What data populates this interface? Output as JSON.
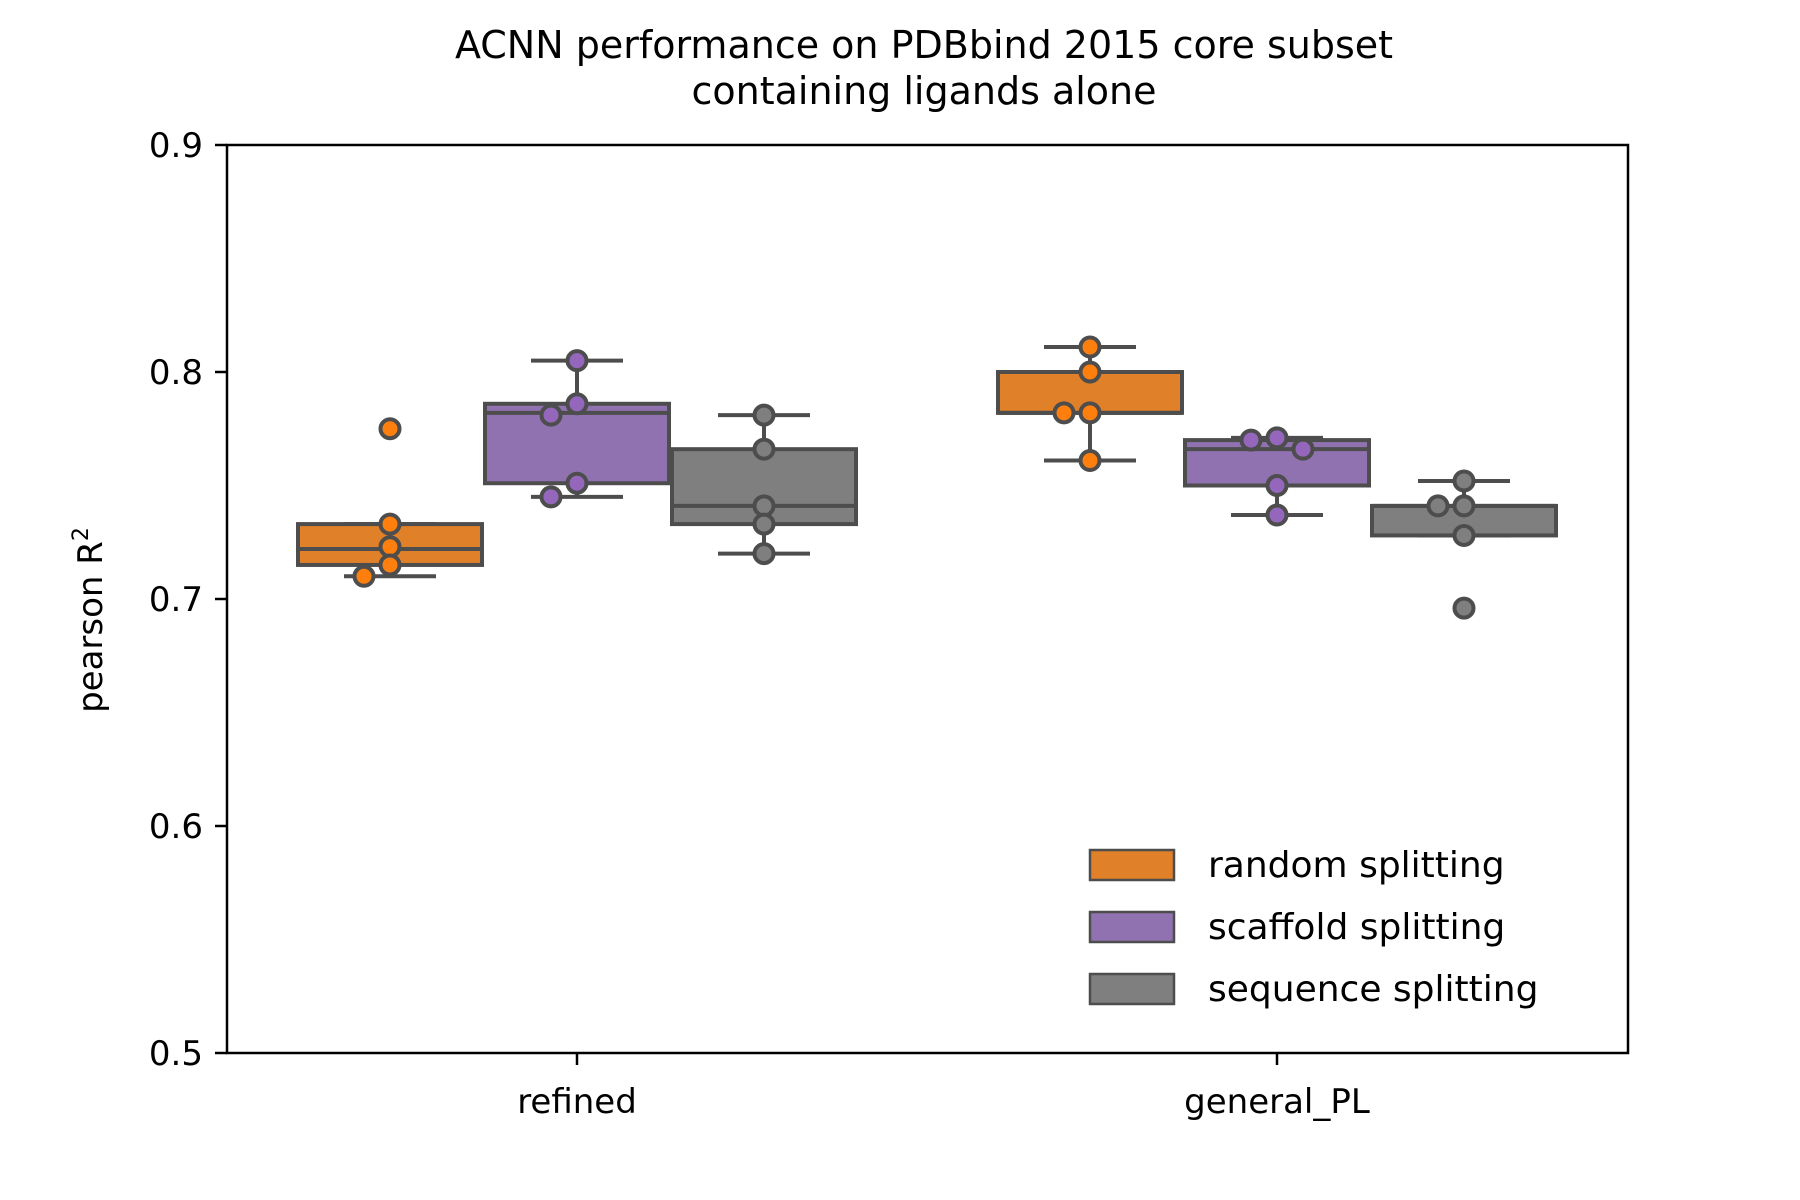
{
  "chart_data": {
    "type": "box",
    "title_line1": "ACNN performance on PDBbind 2015 core subset",
    "title_line2": "containing ligands alone",
    "xlabel": "",
    "ylabel": "pearson R",
    "ylabel_superscript": "2",
    "ylim": [
      0.5,
      0.9
    ],
    "yticks": [
      0.5,
      0.6,
      0.7,
      0.8,
      0.9
    ],
    "ytick_labels": [
      "0.5",
      "0.6",
      "0.7",
      "0.8",
      "0.9"
    ],
    "categories": [
      "refined",
      "general_PL"
    ],
    "grid": false,
    "legend_position": "lower-right",
    "series": [
      {
        "name": "random splitting",
        "color": "#e08028",
        "point_color": "#ff7f0e",
        "boxes": [
          {
            "whisker_low": 0.71,
            "q1": 0.715,
            "median": 0.722,
            "q3": 0.733,
            "whisker_high": 0.733,
            "outliers": [
              0.775
            ],
            "points": [
              0.775,
              0.733,
              0.723,
              0.715,
              0.71
            ]
          },
          {
            "whisker_low": 0.761,
            "q1": 0.782,
            "median": 0.782,
            "q3": 0.8,
            "whisker_high": 0.811,
            "outliers": [],
            "points": [
              0.811,
              0.8,
              0.782,
              0.782,
              0.761
            ]
          }
        ]
      },
      {
        "name": "scaffold splitting",
        "color": "#9172b0",
        "point_color": "#9467bd",
        "boxes": [
          {
            "whisker_low": 0.745,
            "q1": 0.751,
            "median": 0.782,
            "q3": 0.786,
            "whisker_high": 0.805,
            "outliers": [],
            "points": [
              0.805,
              0.786,
              0.781,
              0.751,
              0.745
            ]
          },
          {
            "whisker_low": 0.737,
            "q1": 0.75,
            "median": 0.766,
            "q3": 0.77,
            "whisker_high": 0.771,
            "outliers": [],
            "points": [
              0.771,
              0.77,
              0.766,
              0.75,
              0.737
            ]
          }
        ]
      },
      {
        "name": "sequence splitting",
        "color": "#7f7f7f",
        "point_color": "#7f7f7f",
        "boxes": [
          {
            "whisker_low": 0.72,
            "q1": 0.733,
            "median": 0.741,
            "q3": 0.766,
            "whisker_high": 0.781,
            "outliers": [],
            "points": [
              0.781,
              0.766,
              0.741,
              0.733,
              0.72
            ]
          },
          {
            "whisker_low": 0.728,
            "q1": 0.728,
            "median": 0.741,
            "q3": 0.741,
            "whisker_high": 0.752,
            "outliers": [
              0.696
            ],
            "points": [
              0.752,
              0.741,
              0.741,
              0.728,
              0.696
            ]
          }
        ]
      }
    ]
  }
}
